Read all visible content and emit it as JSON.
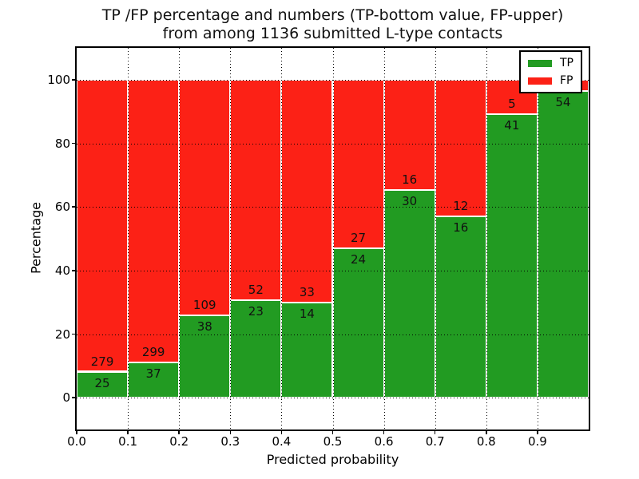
{
  "chart_data": {
    "type": "bar",
    "stacked": true,
    "title_line1": "TP /FP percentage and numbers (TP-bottom value, FP-upper)",
    "title_line2": "from among 1136 submitted L-type contacts",
    "xlabel": "Predicted probability",
    "ylabel": "Percentage",
    "xlim": [
      0,
      1.0
    ],
    "ylim": [
      -10,
      110
    ],
    "x_ticks": [
      "0.0",
      "0.1",
      "0.2",
      "0.3",
      "0.4",
      "0.5",
      "0.6",
      "0.7",
      "0.8",
      "0.9"
    ],
    "y_ticks": [
      0,
      20,
      40,
      60,
      80,
      100
    ],
    "grid": "dotted",
    "bin_width": 0.1,
    "legend": {
      "position": "upper right",
      "items": [
        {
          "label": "TP",
          "color": "#229b22"
        },
        {
          "label": "FP",
          "color": "#fc2116"
        }
      ]
    },
    "bins": [
      {
        "x0": 0.0,
        "tp_count": 25,
        "fp_count": 279,
        "tp_pct": 8.2,
        "fp_pct": 91.8
      },
      {
        "x0": 0.1,
        "tp_count": 37,
        "fp_count": 299,
        "tp_pct": 11.0,
        "fp_pct": 89.0
      },
      {
        "x0": 0.2,
        "tp_count": 38,
        "fp_count": 109,
        "tp_pct": 25.9,
        "fp_pct": 74.1
      },
      {
        "x0": 0.3,
        "tp_count": 23,
        "fp_count": 52,
        "tp_pct": 30.7,
        "fp_pct": 69.3
      },
      {
        "x0": 0.4,
        "tp_count": 14,
        "fp_count": 33,
        "tp_pct": 29.8,
        "fp_pct": 70.2
      },
      {
        "x0": 0.5,
        "tp_count": 24,
        "fp_count": 27,
        "tp_pct": 47.1,
        "fp_pct": 52.9
      },
      {
        "x0": 0.6,
        "tp_count": 30,
        "fp_count": 16,
        "tp_pct": 65.2,
        "fp_pct": 34.8
      },
      {
        "x0": 0.7,
        "tp_count": 16,
        "fp_count": 12,
        "tp_pct": 57.1,
        "fp_pct": 42.9
      },
      {
        "x0": 0.8,
        "tp_count": 41,
        "fp_count": 5,
        "tp_pct": 89.1,
        "fp_pct": 10.9
      },
      {
        "x0": 0.9,
        "tp_count": 54,
        "fp_count": null,
        "tp_pct": 96.4,
        "fp_pct": 3.6
      }
    ]
  }
}
